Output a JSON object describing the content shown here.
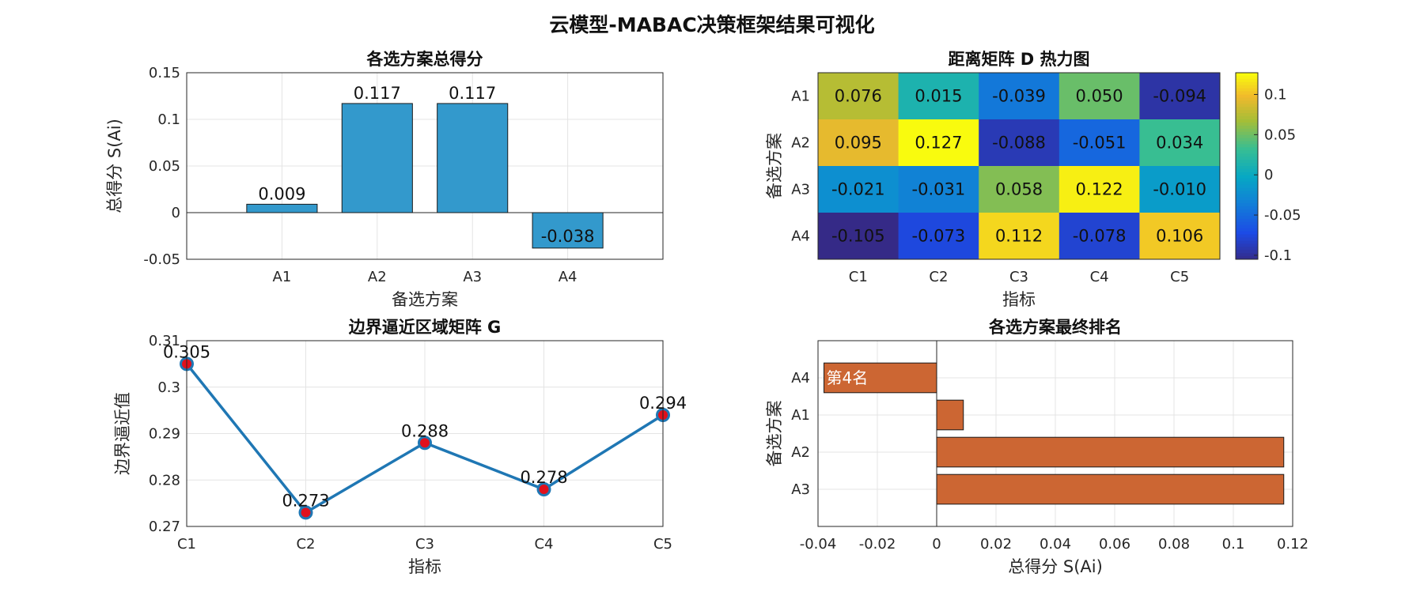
{
  "figure_title": "云模型-MABAC决策框架结果可视化",
  "colors": {
    "bar": "#3399cc",
    "rank_bar": "#cc6633",
    "line": "#1f77b4",
    "marker_face": "#e0101c"
  },
  "chart_data": [
    {
      "id": "scores",
      "type": "bar",
      "title": "各选方案总得分",
      "xlabel": "备选方案",
      "ylabel": "总得分 S(Ai)",
      "categories": [
        "A1",
        "A2",
        "A3",
        "A4"
      ],
      "values": [
        0.009,
        0.117,
        0.117,
        -0.038
      ],
      "value_labels": [
        "0.009",
        "0.117",
        "0.117",
        "-0.038"
      ],
      "ylim": [
        -0.05,
        0.15
      ],
      "yticks": [
        -0.05,
        0,
        0.05,
        0.1,
        0.15
      ],
      "ytick_labels": [
        "-0.05",
        "0",
        "0.05",
        "0.1",
        "0.15"
      ],
      "grid": true
    },
    {
      "id": "distance",
      "type": "heatmap",
      "title": "距离矩阵 D 热力图",
      "xlabel": "指标",
      "ylabel": "备选方案",
      "columns": [
        "C1",
        "C2",
        "C3",
        "C4",
        "C5"
      ],
      "rows": [
        "A1",
        "A2",
        "A3",
        "A4"
      ],
      "values": [
        [
          0.076,
          0.015,
          -0.039,
          0.05,
          -0.094
        ],
        [
          0.095,
          0.127,
          -0.088,
          -0.051,
          0.034
        ],
        [
          -0.021,
          -0.031,
          0.058,
          0.122,
          -0.01
        ],
        [
          -0.105,
          -0.073,
          0.112,
          -0.078,
          0.106
        ]
      ],
      "cell_labels": [
        [
          "0.076",
          "0.015",
          "-0.039",
          "0.050",
          "-0.094"
        ],
        [
          "0.095",
          "0.127",
          "-0.088",
          "-0.051",
          "0.034"
        ],
        [
          "-0.021",
          "-0.031",
          "0.058",
          "0.122",
          "-0.010"
        ],
        [
          "-0.105",
          "-0.073",
          "0.112",
          "-0.078",
          "0.106"
        ]
      ],
      "colormap": "parula",
      "clim": [
        -0.105,
        0.127
      ],
      "colorbar_ticks": [
        -0.1,
        -0.05,
        0,
        0.05,
        0.1
      ],
      "colorbar_tick_labels": [
        "-0.1",
        "-0.05",
        "0",
        "0.05",
        "0.1"
      ]
    },
    {
      "id": "border",
      "type": "line",
      "title": "边界逼近区域矩阵 G",
      "xlabel": "指标",
      "ylabel": "边界逼近值",
      "categories": [
        "C1",
        "C2",
        "C3",
        "C4",
        "C5"
      ],
      "values": [
        0.305,
        0.273,
        0.288,
        0.278,
        0.294
      ],
      "value_labels": [
        "0.305",
        "0.273",
        "0.288",
        "0.278",
        "0.294"
      ],
      "ylim": [
        0.27,
        0.31
      ],
      "yticks": [
        0.27,
        0.28,
        0.29,
        0.3,
        0.31
      ],
      "ytick_labels": [
        "0.27",
        "0.28",
        "0.29",
        "0.3",
        "0.31"
      ],
      "grid": true
    },
    {
      "id": "ranking",
      "type": "bar",
      "orientation": "horizontal",
      "title": "各选方案最终排名",
      "xlabel": "总得分 S(Ai)",
      "ylabel": "备选方案",
      "categories": [
        "A4",
        "A1",
        "A2",
        "A3"
      ],
      "values": [
        -0.038,
        0.009,
        0.117,
        0.117
      ],
      "rank_labels": [
        "第4名",
        "",
        "",
        ""
      ],
      "xlim": [
        -0.04,
        0.12
      ],
      "xticks": [
        -0.04,
        -0.02,
        0,
        0.02,
        0.04,
        0.06,
        0.08,
        0.1,
        0.12
      ],
      "xtick_labels": [
        "-0.04",
        "-0.02",
        "0",
        "0.02",
        "0.04",
        "0.06",
        "0.08",
        "0.1",
        "0.12"
      ],
      "grid": true
    }
  ]
}
